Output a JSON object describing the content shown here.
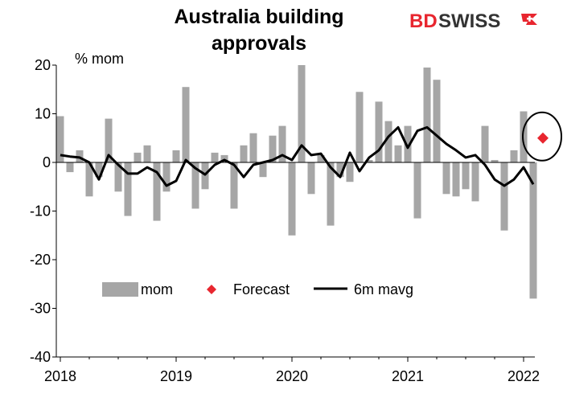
{
  "chart_data": {
    "type": "bar",
    "title_lines": [
      "Australia building",
      "approvals"
    ],
    "unit_label": "% mom",
    "ylim": [
      -40,
      20
    ],
    "y_ticks": [
      20,
      10,
      0,
      -10,
      -20,
      -30,
      -40
    ],
    "x_ticks": [
      "2018",
      "2019",
      "2020",
      "2021",
      "2022"
    ],
    "grid": false,
    "legend_position": "inside-lower-left",
    "legend": {
      "mom": "mom",
      "forecast": "Forecast",
      "mavg": "6m mavg"
    },
    "colors": {
      "bars": "#a6a6a6",
      "line": "#000000",
      "forecast": "#e8262f",
      "circle": "#000000"
    },
    "series": [
      {
        "name": "mom",
        "kind": "bar",
        "values": [
          9.5,
          -2,
          2.5,
          -7,
          -3,
          9,
          -6,
          -11,
          2,
          3.5,
          -12,
          -6,
          2.5,
          15.5,
          -9.5,
          -5.5,
          2,
          1.5,
          -9.5,
          3.5,
          6,
          -3,
          5.5,
          7.5,
          -15,
          20,
          -6.5,
          1.5,
          -13,
          -3,
          -4,
          14.5,
          0.5,
          12.5,
          8.5,
          3.5,
          7.5,
          -11.5,
          19.5,
          17,
          -6.5,
          -7,
          -5.5,
          -8,
          7.5,
          0.5,
          -14,
          2.5,
          10.5,
          -28
        ]
      },
      {
        "name": "6m mavg",
        "kind": "line",
        "values": [
          1.5,
          1.2,
          1,
          0,
          -3.5,
          1.5,
          -0.5,
          -2.3,
          -2.3,
          -1,
          -2,
          -4.8,
          -3.8,
          0.5,
          -1.2,
          -2.5,
          -0.5,
          0.5,
          -0.5,
          -3,
          -0.5,
          0,
          0.5,
          1.5,
          0.5,
          3.5,
          1.5,
          1.8,
          -1,
          -3,
          2,
          -1.8,
          1,
          2.5,
          5.3,
          7.2,
          3,
          6.5,
          7.2,
          5.5,
          3.8,
          2.5,
          1,
          1.5,
          -0.5,
          -3.5,
          -4.8,
          -3.5,
          -1,
          -4.5
        ]
      },
      {
        "name": "Forecast",
        "kind": "point",
        "index": 50,
        "value": 5
      }
    ]
  }
}
